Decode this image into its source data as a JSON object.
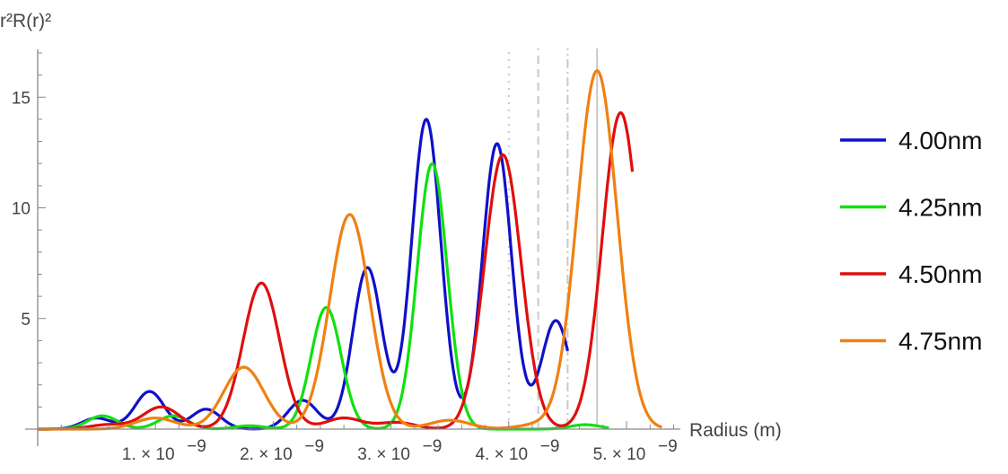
{
  "chart_data": {
    "type": "line",
    "ylabel": "r²R(r)²",
    "xlabel": "Radius  (m)",
    "xlim": [
      0,
      5.5e-09
    ],
    "ylim": [
      0,
      17
    ],
    "grid": false,
    "legend_position": "right",
    "xticks": [
      {
        "value": 1e-09,
        "mantissa": "1.",
        "exponent": "−9"
      },
      {
        "value": 2e-09,
        "mantissa": "2.",
        "exponent": "−9"
      },
      {
        "value": 3e-09,
        "mantissa": "3.",
        "exponent": "−9"
      },
      {
        "value": 4e-09,
        "mantissa": "4.",
        "exponent": "−9"
      },
      {
        "value": 5e-09,
        "mantissa": "5.",
        "exponent": "−9"
      }
    ],
    "yticks": [
      5,
      10,
      15
    ],
    "reference_lines": [
      {
        "x": 4e-09,
        "style": "dotted"
      },
      {
        "x": 4.25e-09,
        "style": "dashed"
      },
      {
        "x": 4.5e-09,
        "style": "dashdot"
      },
      {
        "x": 4.75e-09,
        "style": "solid"
      }
    ],
    "series": [
      {
        "name": "4.00nm",
        "color": "#1010c8",
        "peaks": [
          [
            5e-10,
            0.5
          ],
          [
            9.5e-10,
            1.7
          ],
          [
            1.43e-09,
            0.9
          ],
          [
            2.25e-09,
            1.3
          ],
          [
            2.8e-09,
            7.3
          ],
          [
            3.3e-09,
            14.0
          ],
          [
            3.9e-09,
            12.9
          ],
          [
            4.4e-09,
            4.9
          ]
        ],
        "width_factor": 0.175,
        "x_range": [
          0,
          4.5e-09
        ]
      },
      {
        "name": "4.25nm",
        "color": "#10e010",
        "peaks": [
          [
            5.5e-10,
            0.6
          ],
          [
            1.15e-09,
            0.6
          ],
          [
            1.8e-09,
            0.15
          ],
          [
            2.45e-09,
            5.5
          ],
          [
            3.35e-09,
            12.0
          ],
          [
            4.65e-09,
            0.2
          ]
        ],
        "width_factor": 0.18,
        "x_range": [
          0,
          4.85e-09
        ]
      },
      {
        "name": "4.50nm",
        "color": "#e00e0e",
        "peaks": [
          [
            6e-10,
            0.2
          ],
          [
            1.05e-09,
            1.0
          ],
          [
            1.9e-09,
            6.6
          ],
          [
            2.6e-09,
            0.5
          ],
          [
            3.05e-09,
            0.3
          ],
          [
            3.95e-09,
            12.4
          ],
          [
            4.95e-09,
            14.3
          ]
        ],
        "width_factor": 0.22,
        "x_range": [
          0,
          5.05e-09
        ]
      },
      {
        "name": "4.75nm",
        "color": "#f08010",
        "peaks": [
          [
            1e-09,
            0.5
          ],
          [
            1.75e-09,
            2.8
          ],
          [
            2.65e-09,
            9.7
          ],
          [
            3.5e-09,
            0.4
          ],
          [
            4.25e-09,
            0.2
          ],
          [
            4.75e-09,
            16.2
          ]
        ],
        "width_factor": 0.24,
        "x_range": [
          0,
          5.3e-09
        ]
      }
    ]
  }
}
